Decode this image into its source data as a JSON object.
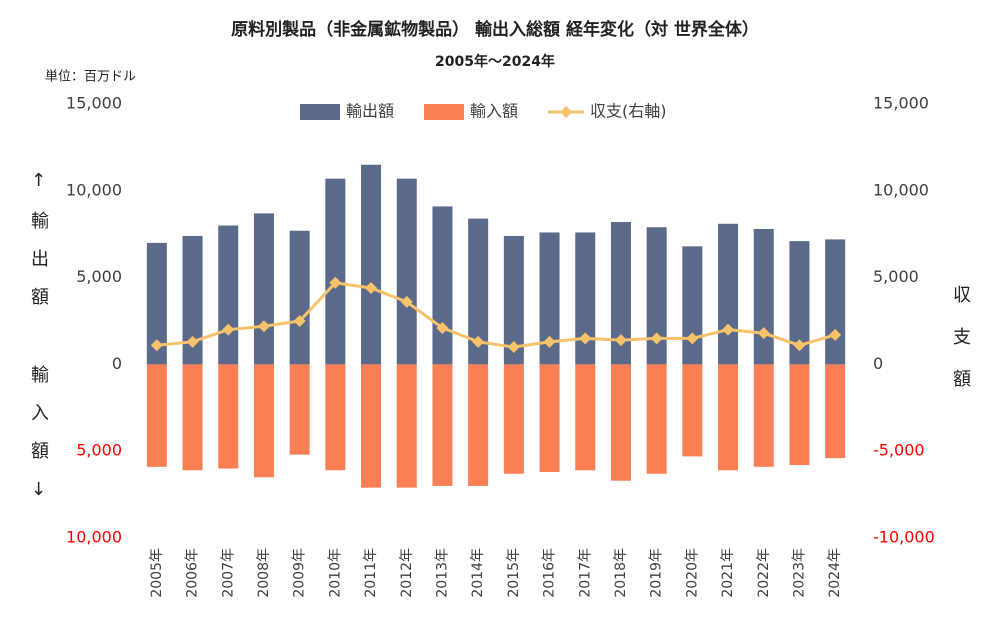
{
  "chart_data": {
    "type": "bar",
    "title": "原料別製品（非金属鉱物製品） 輸出入総額 経年変化（対 世界全体）",
    "subtitle": "2005年～2024年",
    "unit_label": "単位：百万ドル",
    "y_label_top": "↑輸出額",
    "y_label_bottom": "輸入額↓",
    "y2_label": "収支額",
    "categories": [
      "2005年",
      "2006年",
      "2007年",
      "2008年",
      "2009年",
      "2010年",
      "2011年",
      "2012年",
      "2013年",
      "2014年",
      "2015年",
      "2016年",
      "2017年",
      "2018年",
      "2019年",
      "2020年",
      "2021年",
      "2022年",
      "2023年",
      "2024年"
    ],
    "series": [
      {
        "name": "輸出額",
        "type": "bar",
        "color": "#5b6a8a",
        "values": [
          7000,
          7400,
          8000,
          8700,
          7700,
          10700,
          11500,
          10700,
          9100,
          8400,
          7400,
          7600,
          7600,
          8200,
          7900,
          6800,
          8100,
          7800,
          7100,
          7200
        ]
      },
      {
        "name": "輸入額",
        "type": "bar",
        "color": "#fb7f55",
        "values": [
          -5900,
          -6100,
          -6000,
          -6500,
          -5200,
          -6100,
          -7100,
          -7100,
          -7000,
          -7000,
          -6300,
          -6200,
          -6100,
          -6700,
          -6300,
          -5300,
          -6100,
          -5900,
          -5800,
          -5400
        ]
      },
      {
        "name": "収支(右軸)",
        "type": "line",
        "axis": "y2",
        "color": "#f6c36a",
        "values": [
          1100,
          1300,
          2000,
          2200,
          2500,
          4700,
          4400,
          3600,
          2100,
          1300,
          1000,
          1300,
          1500,
          1400,
          1500,
          1500,
          2000,
          1800,
          1100,
          1700
        ]
      }
    ],
    "ylim": [
      -10000,
      15000
    ],
    "yticks": [
      {
        "value": -10000,
        "label": "10,000"
      },
      {
        "value": -5000,
        "label": "5,000"
      },
      0,
      {
        "value": 5000,
        "label": "5,000"
      },
      {
        "value": 10000,
        "label": "10,000"
      },
      {
        "value": 15000,
        "label": "15,000"
      }
    ],
    "y2lim": [
      -10000,
      15000
    ],
    "y2ticks": [
      {
        "value": -10000,
        "label": "-10,000"
      },
      {
        "value": -5000,
        "label": "-5,000"
      },
      0,
      {
        "value": 5000,
        "label": "5,000"
      },
      {
        "value": 10000,
        "label": "10,000"
      },
      {
        "value": 15000,
        "label": "15,000"
      }
    ],
    "negative_tick_color": "#ff0000",
    "grid": false,
    "legend": "top"
  }
}
